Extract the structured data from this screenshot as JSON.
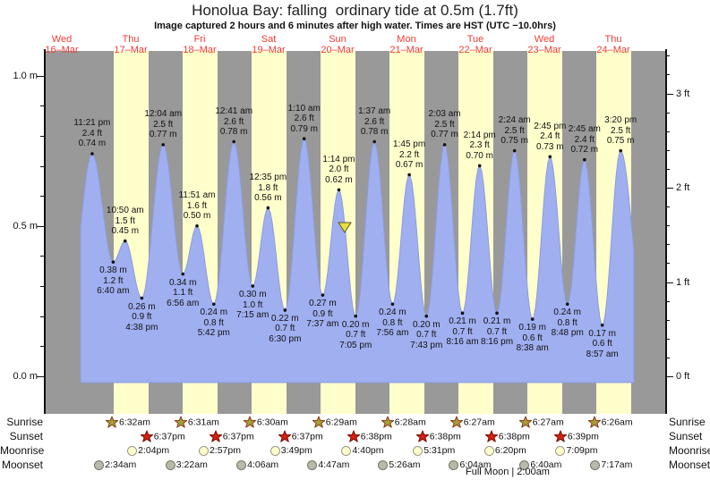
{
  "title": "Honolua Bay: falling  ordinary tide at 0.5m (1.7ft)",
  "subtitle": "Image captured 2 hours and 6 minutes after high water. Times are HST (UTC −10.0hrs)",
  "colors": {
    "night_band": "#999999",
    "day_band": "#ffffcc",
    "tide_fill": "#a0aff0",
    "tide_edge": "#8c9ce0",
    "day_label_red": "#f23c34",
    "sunrise_star_fill": "#a6a037",
    "sunrise_star_stroke": "#8a3a1a",
    "sunset_star_fill": "#d42014",
    "sunset_star_stroke": "#7a1000",
    "moonrise_fill": "#ffffcc",
    "moonrise_stroke": "#999988",
    "moonset_fill": "#b9b9aa",
    "moonset_stroke": "#777766",
    "marker_fill": "#e6e03c",
    "marker_stroke": "#555533"
  },
  "chart_data": {
    "type": "area",
    "title": "Honolua Bay: falling  ordinary tide at 0.5m (1.7ft)",
    "subtitle": "Image captured 2 hours and 6 minutes after high water. Times are HST (UTC −10.0hrs)",
    "legend": "none",
    "grid": false,
    "days": [
      {
        "dow": "Wed",
        "date": "16–Mar"
      },
      {
        "dow": "Thu",
        "date": "17–Mar"
      },
      {
        "dow": "Fri",
        "date": "18–Mar"
      },
      {
        "dow": "Sat",
        "date": "19–Mar"
      },
      {
        "dow": "Sun",
        "date": "20–Mar"
      },
      {
        "dow": "Mon",
        "date": "21–Mar"
      },
      {
        "dow": "Tue",
        "date": "22–Mar"
      },
      {
        "dow": "Wed",
        "date": "23–Mar"
      },
      {
        "dow": "Thu",
        "date": "24–Mar"
      }
    ],
    "y_axis_left": {
      "unit": "m",
      "range_m": [
        0.0,
        1.08
      ],
      "major_ticks": [
        0.0,
        0.5,
        1.0
      ],
      "minor_step": 0.1,
      "labels": [
        "0.0 m",
        "0.5 m",
        "1.0 m"
      ]
    },
    "y_axis_right": {
      "unit": "ft",
      "range_ft": [
        0,
        3.4
      ],
      "major_ticks": [
        0,
        1,
        2,
        3
      ],
      "minor_step": 0.2,
      "labels": [
        "0 ft",
        "1 ft",
        "2 ft",
        "3 ft"
      ]
    },
    "tide_events": [
      {
        "day": 0,
        "type": "high",
        "time": "11:21 pm",
        "ft": "2.4 ft",
        "m": "0.74 m",
        "height_m": 0.74
      },
      {
        "day": 1,
        "type": "low",
        "time": "6:40 am",
        "ft": "1.2 ft",
        "m": "0.38 m",
        "height_m": 0.38
      },
      {
        "day": 1,
        "type": "high",
        "time": "10:50 am",
        "ft": "1.5 ft",
        "m": "0.45 m",
        "height_m": 0.45
      },
      {
        "day": 1,
        "type": "low",
        "time": "4:38 pm",
        "ft": "0.9 ft",
        "m": "0.26 m",
        "height_m": 0.26
      },
      {
        "day": 2,
        "type": "high",
        "time": "12:04 am",
        "ft": "2.5 ft",
        "m": "0.77 m",
        "height_m": 0.77
      },
      {
        "day": 2,
        "type": "low",
        "time": "6:56 am",
        "ft": "1.1 ft",
        "m": "0.34 m",
        "height_m": 0.34
      },
      {
        "day": 2,
        "type": "high",
        "time": "11:51 am",
        "ft": "1.6 ft",
        "m": "0.50 m",
        "height_m": 0.5
      },
      {
        "day": 2,
        "type": "low",
        "time": "5:42 pm",
        "ft": "0.8 ft",
        "m": "0.24 m",
        "height_m": 0.24
      },
      {
        "day": 3,
        "type": "high",
        "time": "12:41 am",
        "ft": "2.6 ft",
        "m": "0.78 m",
        "height_m": 0.78
      },
      {
        "day": 3,
        "type": "low",
        "time": "7:15 am",
        "ft": "1.0 ft",
        "m": "0.30 m",
        "height_m": 0.3
      },
      {
        "day": 3,
        "type": "high",
        "time": "12:35 pm",
        "ft": "1.8 ft",
        "m": "0.56 m",
        "height_m": 0.56
      },
      {
        "day": 3,
        "type": "low",
        "time": "6:30 pm",
        "ft": "0.7 ft",
        "m": "0.22 m",
        "height_m": 0.22
      },
      {
        "day": 4,
        "type": "high",
        "time": "1:10 am",
        "ft": "2.6 ft",
        "m": "0.79 m",
        "height_m": 0.79
      },
      {
        "day": 4,
        "type": "low",
        "time": "7:37 am",
        "ft": "0.9 ft",
        "m": "0.27 m",
        "height_m": 0.27
      },
      {
        "day": 4,
        "type": "high",
        "time": "1:14 pm",
        "ft": "2.0 ft",
        "m": "0.62 m",
        "height_m": 0.62
      },
      {
        "day": 4,
        "type": "low",
        "time": "7:05 pm",
        "ft": "0.7 ft",
        "m": "0.20 m",
        "height_m": 0.2
      },
      {
        "day": 5,
        "type": "high",
        "time": "1:37 am",
        "ft": "2.6 ft",
        "m": "0.78 m",
        "height_m": 0.78
      },
      {
        "day": 5,
        "type": "low",
        "time": "7:56 am",
        "ft": "0.8 ft",
        "m": "0.24 m",
        "height_m": 0.24
      },
      {
        "day": 5,
        "type": "high",
        "time": "1:45 pm",
        "ft": "2.2 ft",
        "m": "0.67 m",
        "height_m": 0.67
      },
      {
        "day": 5,
        "type": "low",
        "time": "7:43 pm",
        "ft": "0.7 ft",
        "m": "0.20 m",
        "height_m": 0.2
      },
      {
        "day": 6,
        "type": "high",
        "time": "2:03 am",
        "ft": "2.5 ft",
        "m": "0.77 m",
        "height_m": 0.77
      },
      {
        "day": 6,
        "type": "low",
        "time": "8:16 am",
        "ft": "0.7 ft",
        "m": "0.21 m",
        "height_m": 0.21
      },
      {
        "day": 6,
        "type": "high",
        "time": "2:14 pm",
        "ft": "2.3 ft",
        "m": "0.70 m",
        "height_m": 0.7
      },
      {
        "day": 6,
        "type": "low",
        "time": "8:16 pm",
        "ft": "0.7 ft",
        "m": "0.21 m",
        "height_m": 0.21
      },
      {
        "day": 7,
        "type": "high",
        "time": "2:24 am",
        "ft": "2.5 ft",
        "m": "0.75 m",
        "height_m": 0.75
      },
      {
        "day": 7,
        "type": "low",
        "time": "8:38 am",
        "ft": "0.6 ft",
        "m": "0.19 m",
        "height_m": 0.19
      },
      {
        "day": 7,
        "type": "high",
        "time": "2:45 pm",
        "ft": "2.4 ft",
        "m": "0.73 m",
        "height_m": 0.73
      },
      {
        "day": 7,
        "type": "low",
        "time": "8:48 pm",
        "ft": "0.8 ft",
        "m": "0.24 m",
        "height_m": 0.24
      },
      {
        "day": 8,
        "type": "high",
        "time": "2:45 am",
        "ft": "2.4 ft",
        "m": "0.72 m",
        "height_m": 0.72
      },
      {
        "day": 8,
        "type": "low",
        "time": "8:57 am",
        "ft": "0.6 ft",
        "m": "0.17 m",
        "height_m": 0.17
      },
      {
        "day": 8,
        "type": "high",
        "time": "3:20 pm",
        "ft": "2.5 ft",
        "m": "0.75 m",
        "height_m": 0.75
      }
    ],
    "current_marker": {
      "day": 4,
      "time": "3:20 pm",
      "height_m": 0.5,
      "shape": "down-triangle"
    },
    "curve_padding": {
      "start": {
        "day": 0,
        "time": "3:35 pm",
        "height_m": 0.28
      },
      "end": {
        "day": 8,
        "time": "11:17 pm",
        "height_m": 0.215
      }
    }
  },
  "almanac": {
    "left_labels": [
      "Sunrise",
      "Sunset",
      "Moonrise",
      "Moonset"
    ],
    "right_labels": [
      "Sunrise",
      "Sunset",
      "Moonrise",
      "Moonset"
    ],
    "rows": [
      {
        "label": "Sunrise",
        "icon": "sunrise-star-icon",
        "entries": [
          {
            "day": 1,
            "time": "6:32am"
          },
          {
            "day": 2,
            "time": "6:31am"
          },
          {
            "day": 3,
            "time": "6:30am"
          },
          {
            "day": 4,
            "time": "6:29am"
          },
          {
            "day": 5,
            "time": "6:28am"
          },
          {
            "day": 6,
            "time": "6:27am"
          },
          {
            "day": 7,
            "time": "6:27am"
          },
          {
            "day": 8,
            "time": "6:26am"
          }
        ]
      },
      {
        "label": "Sunset",
        "icon": "sunset-star-icon",
        "entries": [
          {
            "day": 1,
            "time": "6:37pm"
          },
          {
            "day": 2,
            "time": "6:37pm"
          },
          {
            "day": 3,
            "time": "6:37pm"
          },
          {
            "day": 4,
            "time": "6:38pm"
          },
          {
            "day": 5,
            "time": "6:38pm"
          },
          {
            "day": 6,
            "time": "6:38pm"
          },
          {
            "day": 7,
            "time": "6:39pm"
          }
        ]
      },
      {
        "label": "Moonrise",
        "icon": "moonrise-circle-icon",
        "entries": [
          {
            "day": 1,
            "time": "2:04pm"
          },
          {
            "day": 2,
            "time": "2:57pm"
          },
          {
            "day": 3,
            "time": "3:49pm"
          },
          {
            "day": 4,
            "time": "4:40pm"
          },
          {
            "day": 5,
            "time": "5:31pm"
          },
          {
            "day": 6,
            "time": "6:20pm"
          },
          {
            "day": 7,
            "time": "7:09pm"
          }
        ]
      },
      {
        "label": "Moonset",
        "icon": "moonset-circle-icon",
        "entries": [
          {
            "day": 1,
            "time": "2:34am"
          },
          {
            "day": 2,
            "time": "3:22am"
          },
          {
            "day": 3,
            "time": "4:06am"
          },
          {
            "day": 4,
            "time": "4:47am"
          },
          {
            "day": 5,
            "time": "5:26am"
          },
          {
            "day": 6,
            "time": "6:04am"
          },
          {
            "day": 7,
            "time": "6:40am"
          },
          {
            "day": 8,
            "time": "7:17am"
          }
        ]
      }
    ],
    "footnote": "Full Moon | 2:00am"
  }
}
